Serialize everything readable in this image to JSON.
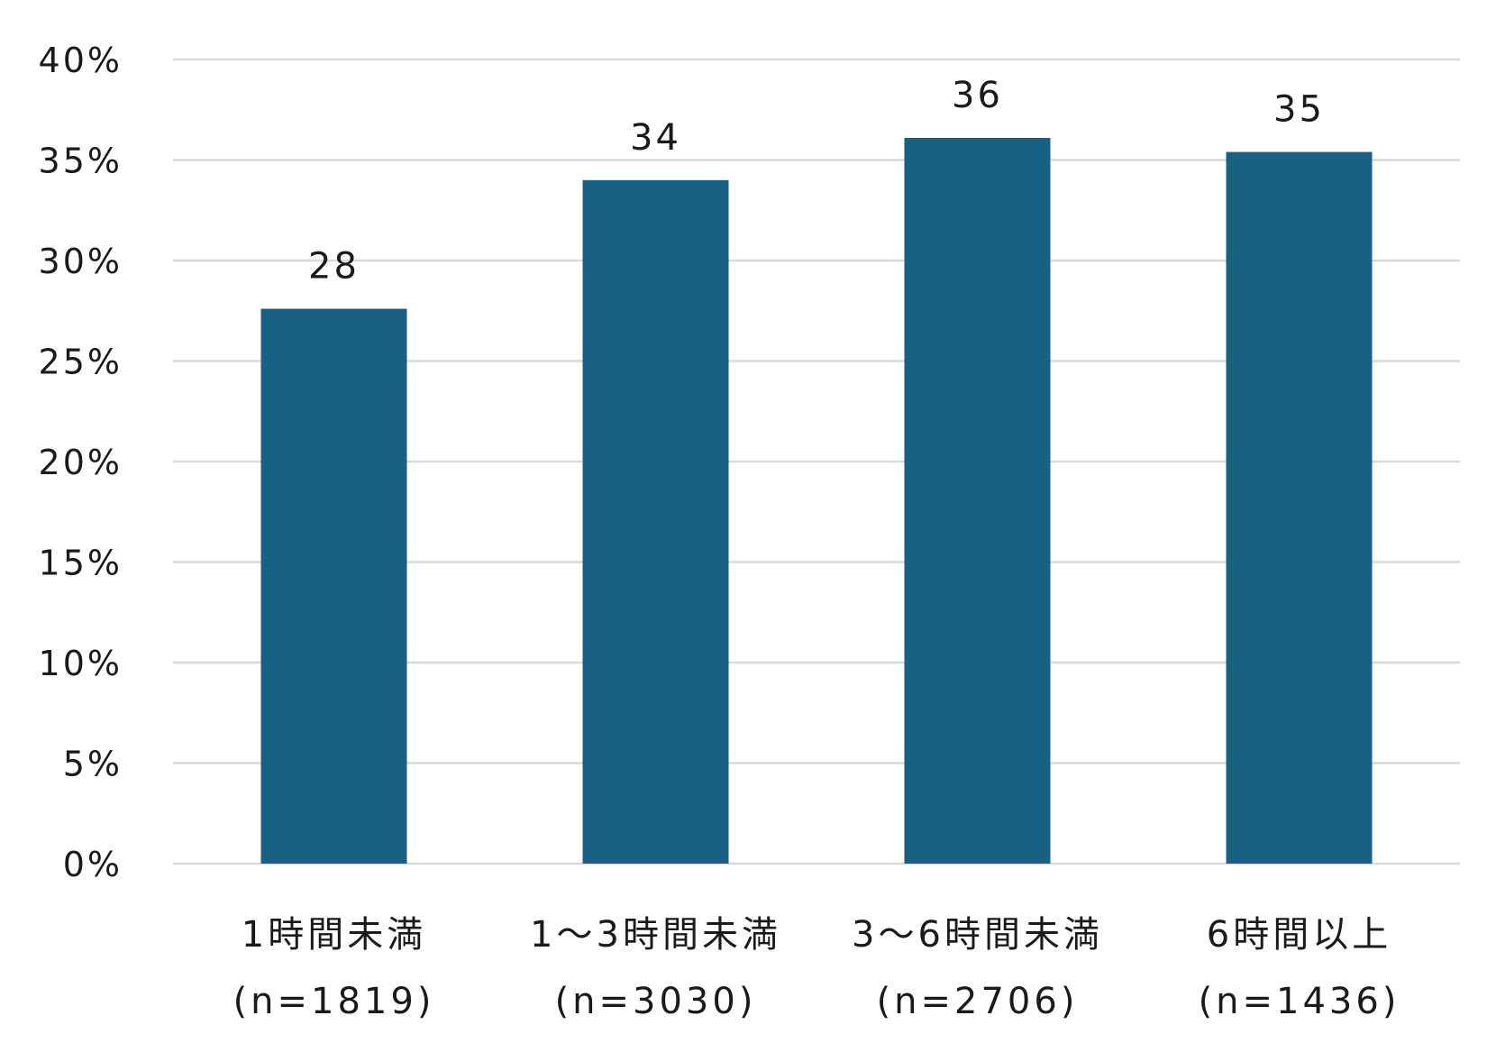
{
  "chart_data": {
    "type": "bar",
    "categories": [
      [
        "1時間未満",
        "(n=1819)"
      ],
      [
        "1〜3時間未満",
        "(n=3030)"
      ],
      [
        "3〜6時間未満",
        "(n=2706)"
      ],
      [
        "6時間以上",
        "(n=1436)"
      ]
    ],
    "values": [
      27.6,
      34.0,
      36.1,
      35.4
    ],
    "data_labels": [
      "28",
      "34",
      "36",
      "35"
    ],
    "ylim": [
      0,
      40
    ],
    "yticks": [
      0,
      5,
      10,
      15,
      20,
      25,
      30,
      35,
      40
    ],
    "ytick_labels": [
      "0%",
      "5%",
      "10%",
      "15%",
      "20%",
      "25%",
      "30%",
      "35%",
      "40%"
    ],
    "title": "",
    "xlabel": "",
    "ylabel": "",
    "grid": true,
    "legend": "none",
    "bar_color": "#186182"
  }
}
